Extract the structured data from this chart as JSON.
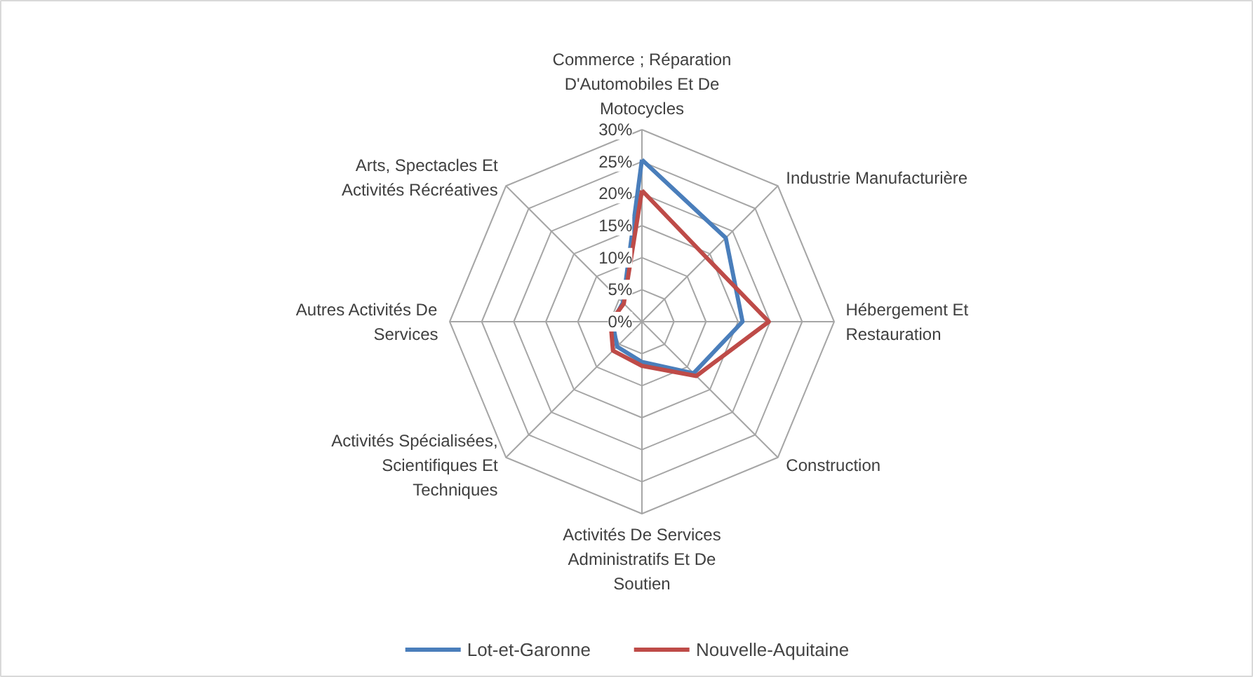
{
  "chart_data": {
    "type": "radar",
    "categories": [
      "Commerce ; Réparation D'Automobiles Et De Motocycles",
      "Industrie Manufacturière",
      "Hébergement Et Restauration",
      "Construction",
      "Activités De Services Administratifs Et De Soutien",
      "Activités Spécialisées, Scientifiques Et Techniques",
      "Autres Activités De Services",
      "Arts, Spectacles Et Activités Récréatives"
    ],
    "series": [
      {
        "name": "Lot-et-Garonne",
        "color": "#4a7ebb",
        "values": [
          25.3,
          18.5,
          15.7,
          11.4,
          6.3,
          5.5,
          4.6,
          4.2
        ]
      },
      {
        "name": "Nouvelle-Aquitaine",
        "color": "#be4b48",
        "values": [
          20.5,
          14.2,
          19.8,
          12.0,
          6.9,
          6.4,
          4.9,
          4.0
        ]
      }
    ],
    "ylim": [
      0,
      30
    ],
    "yticks": [
      {
        "value": 0,
        "label": "0%"
      },
      {
        "value": 5,
        "label": "5%"
      },
      {
        "value": 10,
        "label": "10%"
      },
      {
        "value": 15,
        "label": "15%"
      },
      {
        "value": 20,
        "label": "20%"
      },
      {
        "value": 25,
        "label": "25%"
      },
      {
        "value": 30,
        "label": "30%"
      }
    ],
    "grid": true,
    "legend": "bottom",
    "marker": "none",
    "line_style": "solid"
  }
}
